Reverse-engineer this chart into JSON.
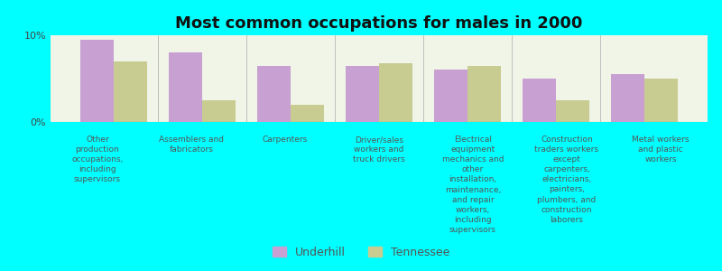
{
  "title": "Most common occupations for males in 2000",
  "categories": [
    "Other\nproduction\noccupations,\nincluding\nsupervisors",
    "Assemblers and\nfabricators",
    "Carpenters",
    "Driver/sales\nworkers and\ntruck drivers",
    "Electrical\nequipment\nmechanics and\nother\ninstallation,\nmaintenance,\nand repair\nworkers,\nincluding\nsupervisors",
    "Construction\ntraders workers\nexcept\ncarpenters,\nelectricians,\npainters,\nplumbers, and\nconstruction\nlaborers",
    "Metal workers\nand plastic\nworkers"
  ],
  "underhill_values": [
    9.5,
    8.0,
    6.5,
    6.5,
    6.0,
    5.0,
    5.5
  ],
  "tennessee_values": [
    7.0,
    2.5,
    2.0,
    6.8,
    6.5,
    2.5,
    5.0
  ],
  "underhill_color": "#c8a0d2",
  "tennessee_color": "#c8cc90",
  "background_color": "#00ffff",
  "plot_background": "#f0f5e8",
  "ylim": [
    0,
    10
  ],
  "yticks": [
    0,
    10
  ],
  "ytick_labels": [
    "0%",
    "10%"
  ],
  "bar_width": 0.38,
  "legend_labels": [
    "Underhill",
    "Tennessee"
  ],
  "title_fontsize": 13
}
